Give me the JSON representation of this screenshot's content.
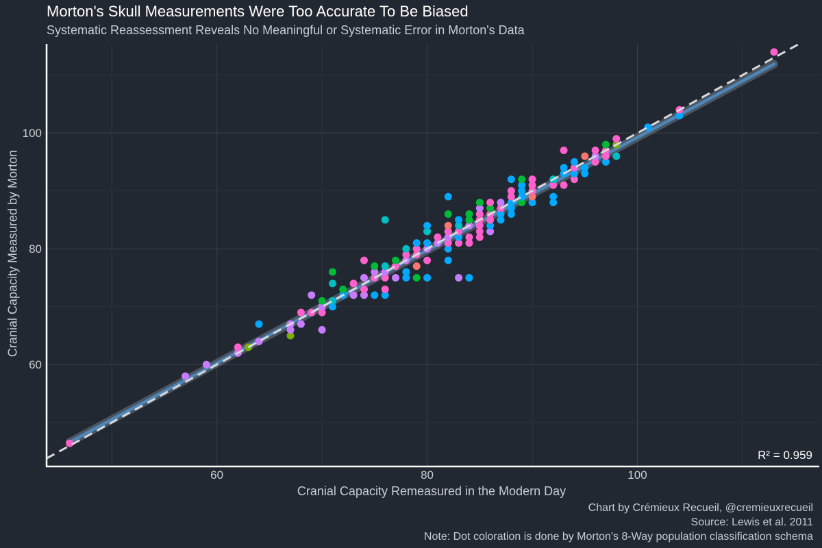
{
  "chart_data": {
    "type": "scatter",
    "title": "Morton's Skull Measurements Were Too Accurate To Be Biased",
    "subtitle": "Systematic Reassessment Reveals No Meaningful or Systematic Error in Morton's Data",
    "xlabel": "Cranial Capacity Remeasured in the Modern Day",
    "ylabel": "Cranial Capacity Measured by Morton",
    "xlim": [
      43.8,
      117.3
    ],
    "ylim": [
      42.4,
      115.4
    ],
    "x_ticks": [
      60,
      80,
      100
    ],
    "y_ticks": [
      60,
      80,
      100
    ],
    "grid": true,
    "legend": "none",
    "annotation": "R² = 0.959",
    "reference_line": {
      "type": "identity",
      "style": "dashed",
      "color": "#d9d9d9"
    },
    "fit_line": {
      "from": [
        46,
        46.6
      ],
      "to": [
        113,
        111.9
      ],
      "color": "#4f86b8"
    },
    "palette": {
      "a": "#f8766d",
      "b": "#7cae00",
      "c": "#00ba38",
      "d": "#00bfc4",
      "e": "#00a9ff",
      "f": "#c77cff",
      "g": "#ff61cc"
    },
    "points": [
      {
        "x": 46,
        "y": 46.4,
        "g": "g"
      },
      {
        "x": 57,
        "y": 58,
        "g": "f"
      },
      {
        "x": 59,
        "y": 60,
        "g": "f"
      },
      {
        "x": 62,
        "y": 62,
        "g": "f"
      },
      {
        "x": 62,
        "y": 63,
        "g": "g"
      },
      {
        "x": 63,
        "y": 63,
        "g": "b"
      },
      {
        "x": 64,
        "y": 64,
        "g": "f"
      },
      {
        "x": 64,
        "y": 67,
        "g": "e"
      },
      {
        "x": 67,
        "y": 65,
        "g": "b"
      },
      {
        "x": 67,
        "y": 66,
        "g": "f"
      },
      {
        "x": 67,
        "y": 67,
        "g": "f"
      },
      {
        "x": 68,
        "y": 67,
        "g": "f"
      },
      {
        "x": 68,
        "y": 69,
        "g": "g"
      },
      {
        "x": 69,
        "y": 69,
        "g": "g"
      },
      {
        "x": 69,
        "y": 72,
        "g": "f"
      },
      {
        "x": 70,
        "y": 66,
        "g": "f"
      },
      {
        "x": 70,
        "y": 69,
        "g": "g"
      },
      {
        "x": 70,
        "y": 70,
        "g": "f"
      },
      {
        "x": 70,
        "y": 71,
        "g": "c"
      },
      {
        "x": 71,
        "y": 70,
        "g": "e"
      },
      {
        "x": 71,
        "y": 71,
        "g": "d"
      },
      {
        "x": 71,
        "y": 74,
        "g": "d"
      },
      {
        "x": 71,
        "y": 76,
        "g": "c"
      },
      {
        "x": 72,
        "y": 72,
        "g": "e"
      },
      {
        "x": 72,
        "y": 73,
        "g": "c"
      },
      {
        "x": 73,
        "y": 72,
        "g": "f"
      },
      {
        "x": 73,
        "y": 74,
        "g": "g"
      },
      {
        "x": 74,
        "y": 72,
        "g": "f"
      },
      {
        "x": 74,
        "y": 73,
        "g": "g"
      },
      {
        "x": 74,
        "y": 75,
        "g": "f"
      },
      {
        "x": 74,
        "y": 78,
        "g": "g"
      },
      {
        "x": 75,
        "y": 72,
        "g": "e"
      },
      {
        "x": 75,
        "y": 75,
        "g": "g"
      },
      {
        "x": 75,
        "y": 76,
        "g": "f"
      },
      {
        "x": 75,
        "y": 77,
        "g": "c"
      },
      {
        "x": 76,
        "y": 72,
        "g": "e"
      },
      {
        "x": 76,
        "y": 73,
        "g": "g"
      },
      {
        "x": 76,
        "y": 75,
        "g": "g"
      },
      {
        "x": 76,
        "y": 76,
        "g": "f"
      },
      {
        "x": 76,
        "y": 77,
        "g": "d"
      },
      {
        "x": 76,
        "y": 85,
        "g": "d"
      },
      {
        "x": 77,
        "y": 75,
        "g": "f"
      },
      {
        "x": 77,
        "y": 77,
        "g": "g"
      },
      {
        "x": 77,
        "y": 78,
        "g": "c"
      },
      {
        "x": 78,
        "y": 75,
        "g": "e"
      },
      {
        "x": 78,
        "y": 76,
        "g": "e"
      },
      {
        "x": 78,
        "y": 78,
        "g": "f"
      },
      {
        "x": 78,
        "y": 79,
        "g": "g"
      },
      {
        "x": 78,
        "y": 80,
        "g": "d"
      },
      {
        "x": 79,
        "y": 75,
        "g": "c"
      },
      {
        "x": 79,
        "y": 77,
        "g": "a"
      },
      {
        "x": 79,
        "y": 79,
        "g": "g"
      },
      {
        "x": 79,
        "y": 80,
        "g": "g"
      },
      {
        "x": 79,
        "y": 81,
        "g": "e"
      },
      {
        "x": 80,
        "y": 75,
        "g": "e"
      },
      {
        "x": 80,
        "y": 78,
        "g": "g"
      },
      {
        "x": 80,
        "y": 80,
        "g": "f"
      },
      {
        "x": 80,
        "y": 81,
        "g": "e"
      },
      {
        "x": 80,
        "y": 83,
        "g": "d"
      },
      {
        "x": 80,
        "y": 84,
        "g": "e"
      },
      {
        "x": 81,
        "y": 81,
        "g": "f"
      },
      {
        "x": 81,
        "y": 82,
        "g": "g"
      },
      {
        "x": 82,
        "y": 78,
        "g": "e"
      },
      {
        "x": 82,
        "y": 80,
        "g": "e"
      },
      {
        "x": 82,
        "y": 81,
        "g": "g"
      },
      {
        "x": 82,
        "y": 82,
        "g": "f"
      },
      {
        "x": 82,
        "y": 83,
        "g": "g"
      },
      {
        "x": 82,
        "y": 84,
        "g": "a"
      },
      {
        "x": 82,
        "y": 86,
        "g": "c"
      },
      {
        "x": 82,
        "y": 89,
        "g": "e"
      },
      {
        "x": 83,
        "y": 75,
        "g": "f"
      },
      {
        "x": 83,
        "y": 81,
        "g": "g"
      },
      {
        "x": 83,
        "y": 82,
        "g": "e"
      },
      {
        "x": 83,
        "y": 83,
        "g": "g"
      },
      {
        "x": 83,
        "y": 84,
        "g": "d"
      },
      {
        "x": 83,
        "y": 85,
        "g": "e"
      },
      {
        "x": 84,
        "y": 75,
        "g": "e"
      },
      {
        "x": 84,
        "y": 81,
        "g": "g"
      },
      {
        "x": 84,
        "y": 82,
        "g": "g"
      },
      {
        "x": 84,
        "y": 84,
        "g": "f"
      },
      {
        "x": 84,
        "y": 85,
        "g": "c"
      },
      {
        "x": 84,
        "y": 86,
        "g": "c"
      },
      {
        "x": 85,
        "y": 82,
        "g": "g"
      },
      {
        "x": 85,
        "y": 83,
        "g": "g"
      },
      {
        "x": 85,
        "y": 84,
        "g": "g"
      },
      {
        "x": 85,
        "y": 85,
        "g": "g"
      },
      {
        "x": 85,
        "y": 86,
        "g": "g"
      },
      {
        "x": 85,
        "y": 87,
        "g": "f"
      },
      {
        "x": 85,
        "y": 88,
        "g": "c"
      },
      {
        "x": 86,
        "y": 83,
        "g": "f"
      },
      {
        "x": 86,
        "y": 84,
        "g": "e"
      },
      {
        "x": 86,
        "y": 85,
        "g": "g"
      },
      {
        "x": 86,
        "y": 86,
        "g": "g"
      },
      {
        "x": 86,
        "y": 87,
        "g": "c"
      },
      {
        "x": 86,
        "y": 88,
        "g": "g"
      },
      {
        "x": 87,
        "y": 85,
        "g": "e"
      },
      {
        "x": 87,
        "y": 86,
        "g": "e"
      },
      {
        "x": 87,
        "y": 87,
        "g": "g"
      },
      {
        "x": 87,
        "y": 88,
        "g": "f"
      },
      {
        "x": 88,
        "y": 86,
        "g": "e"
      },
      {
        "x": 88,
        "y": 87,
        "g": "e"
      },
      {
        "x": 88,
        "y": 88,
        "g": "e"
      },
      {
        "x": 88,
        "y": 89,
        "g": "g"
      },
      {
        "x": 88,
        "y": 90,
        "g": "g"
      },
      {
        "x": 88,
        "y": 92,
        "g": "e"
      },
      {
        "x": 89,
        "y": 88,
        "g": "c"
      },
      {
        "x": 89,
        "y": 89,
        "g": "e"
      },
      {
        "x": 89,
        "y": 90,
        "g": "e"
      },
      {
        "x": 89,
        "y": 91,
        "g": "e"
      },
      {
        "x": 89,
        "y": 92,
        "g": "c"
      },
      {
        "x": 90,
        "y": 88,
        "g": "e"
      },
      {
        "x": 90,
        "y": 89,
        "g": "a"
      },
      {
        "x": 90,
        "y": 90,
        "g": "g"
      },
      {
        "x": 90,
        "y": 91,
        "g": "g"
      },
      {
        "x": 90,
        "y": 92,
        "g": "g"
      },
      {
        "x": 92,
        "y": 88,
        "g": "e"
      },
      {
        "x": 92,
        "y": 89,
        "g": "e"
      },
      {
        "x": 92,
        "y": 91,
        "g": "g"
      },
      {
        "x": 92,
        "y": 92,
        "g": "d"
      },
      {
        "x": 93,
        "y": 91,
        "g": "g"
      },
      {
        "x": 93,
        "y": 93,
        "g": "e"
      },
      {
        "x": 93,
        "y": 94,
        "g": "e"
      },
      {
        "x": 93,
        "y": 97,
        "g": "g"
      },
      {
        "x": 94,
        "y": 92,
        "g": "g"
      },
      {
        "x": 94,
        "y": 93,
        "g": "e"
      },
      {
        "x": 94,
        "y": 94,
        "g": "g"
      },
      {
        "x": 94,
        "y": 95,
        "g": "e"
      },
      {
        "x": 95,
        "y": 93,
        "g": "e"
      },
      {
        "x": 95,
        "y": 94,
        "g": "e"
      },
      {
        "x": 95,
        "y": 96,
        "g": "a"
      },
      {
        "x": 96,
        "y": 95,
        "g": "g"
      },
      {
        "x": 96,
        "y": 96,
        "g": "f"
      },
      {
        "x": 96,
        "y": 97,
        "g": "g"
      },
      {
        "x": 97,
        "y": 95,
        "g": "e"
      },
      {
        "x": 97,
        "y": 96,
        "g": "g"
      },
      {
        "x": 97,
        "y": 97,
        "g": "g"
      },
      {
        "x": 97,
        "y": 98,
        "g": "c"
      },
      {
        "x": 98,
        "y": 96,
        "g": "d"
      },
      {
        "x": 98,
        "y": 98,
        "g": "b"
      },
      {
        "x": 98,
        "y": 99,
        "g": "g"
      },
      {
        "x": 101,
        "y": 101,
        "g": "e"
      },
      {
        "x": 104,
        "y": 103,
        "g": "e"
      },
      {
        "x": 104,
        "y": 104,
        "g": "g"
      },
      {
        "x": 113,
        "y": 114,
        "g": "g"
      }
    ],
    "caption": [
      "Chart by Crémieux Recueil, @cremieuxrecueil",
      "Source: Lewis et al. 2011",
      "Note: Dot coloration is done by Morton's 8-Way population classification schema"
    ]
  }
}
